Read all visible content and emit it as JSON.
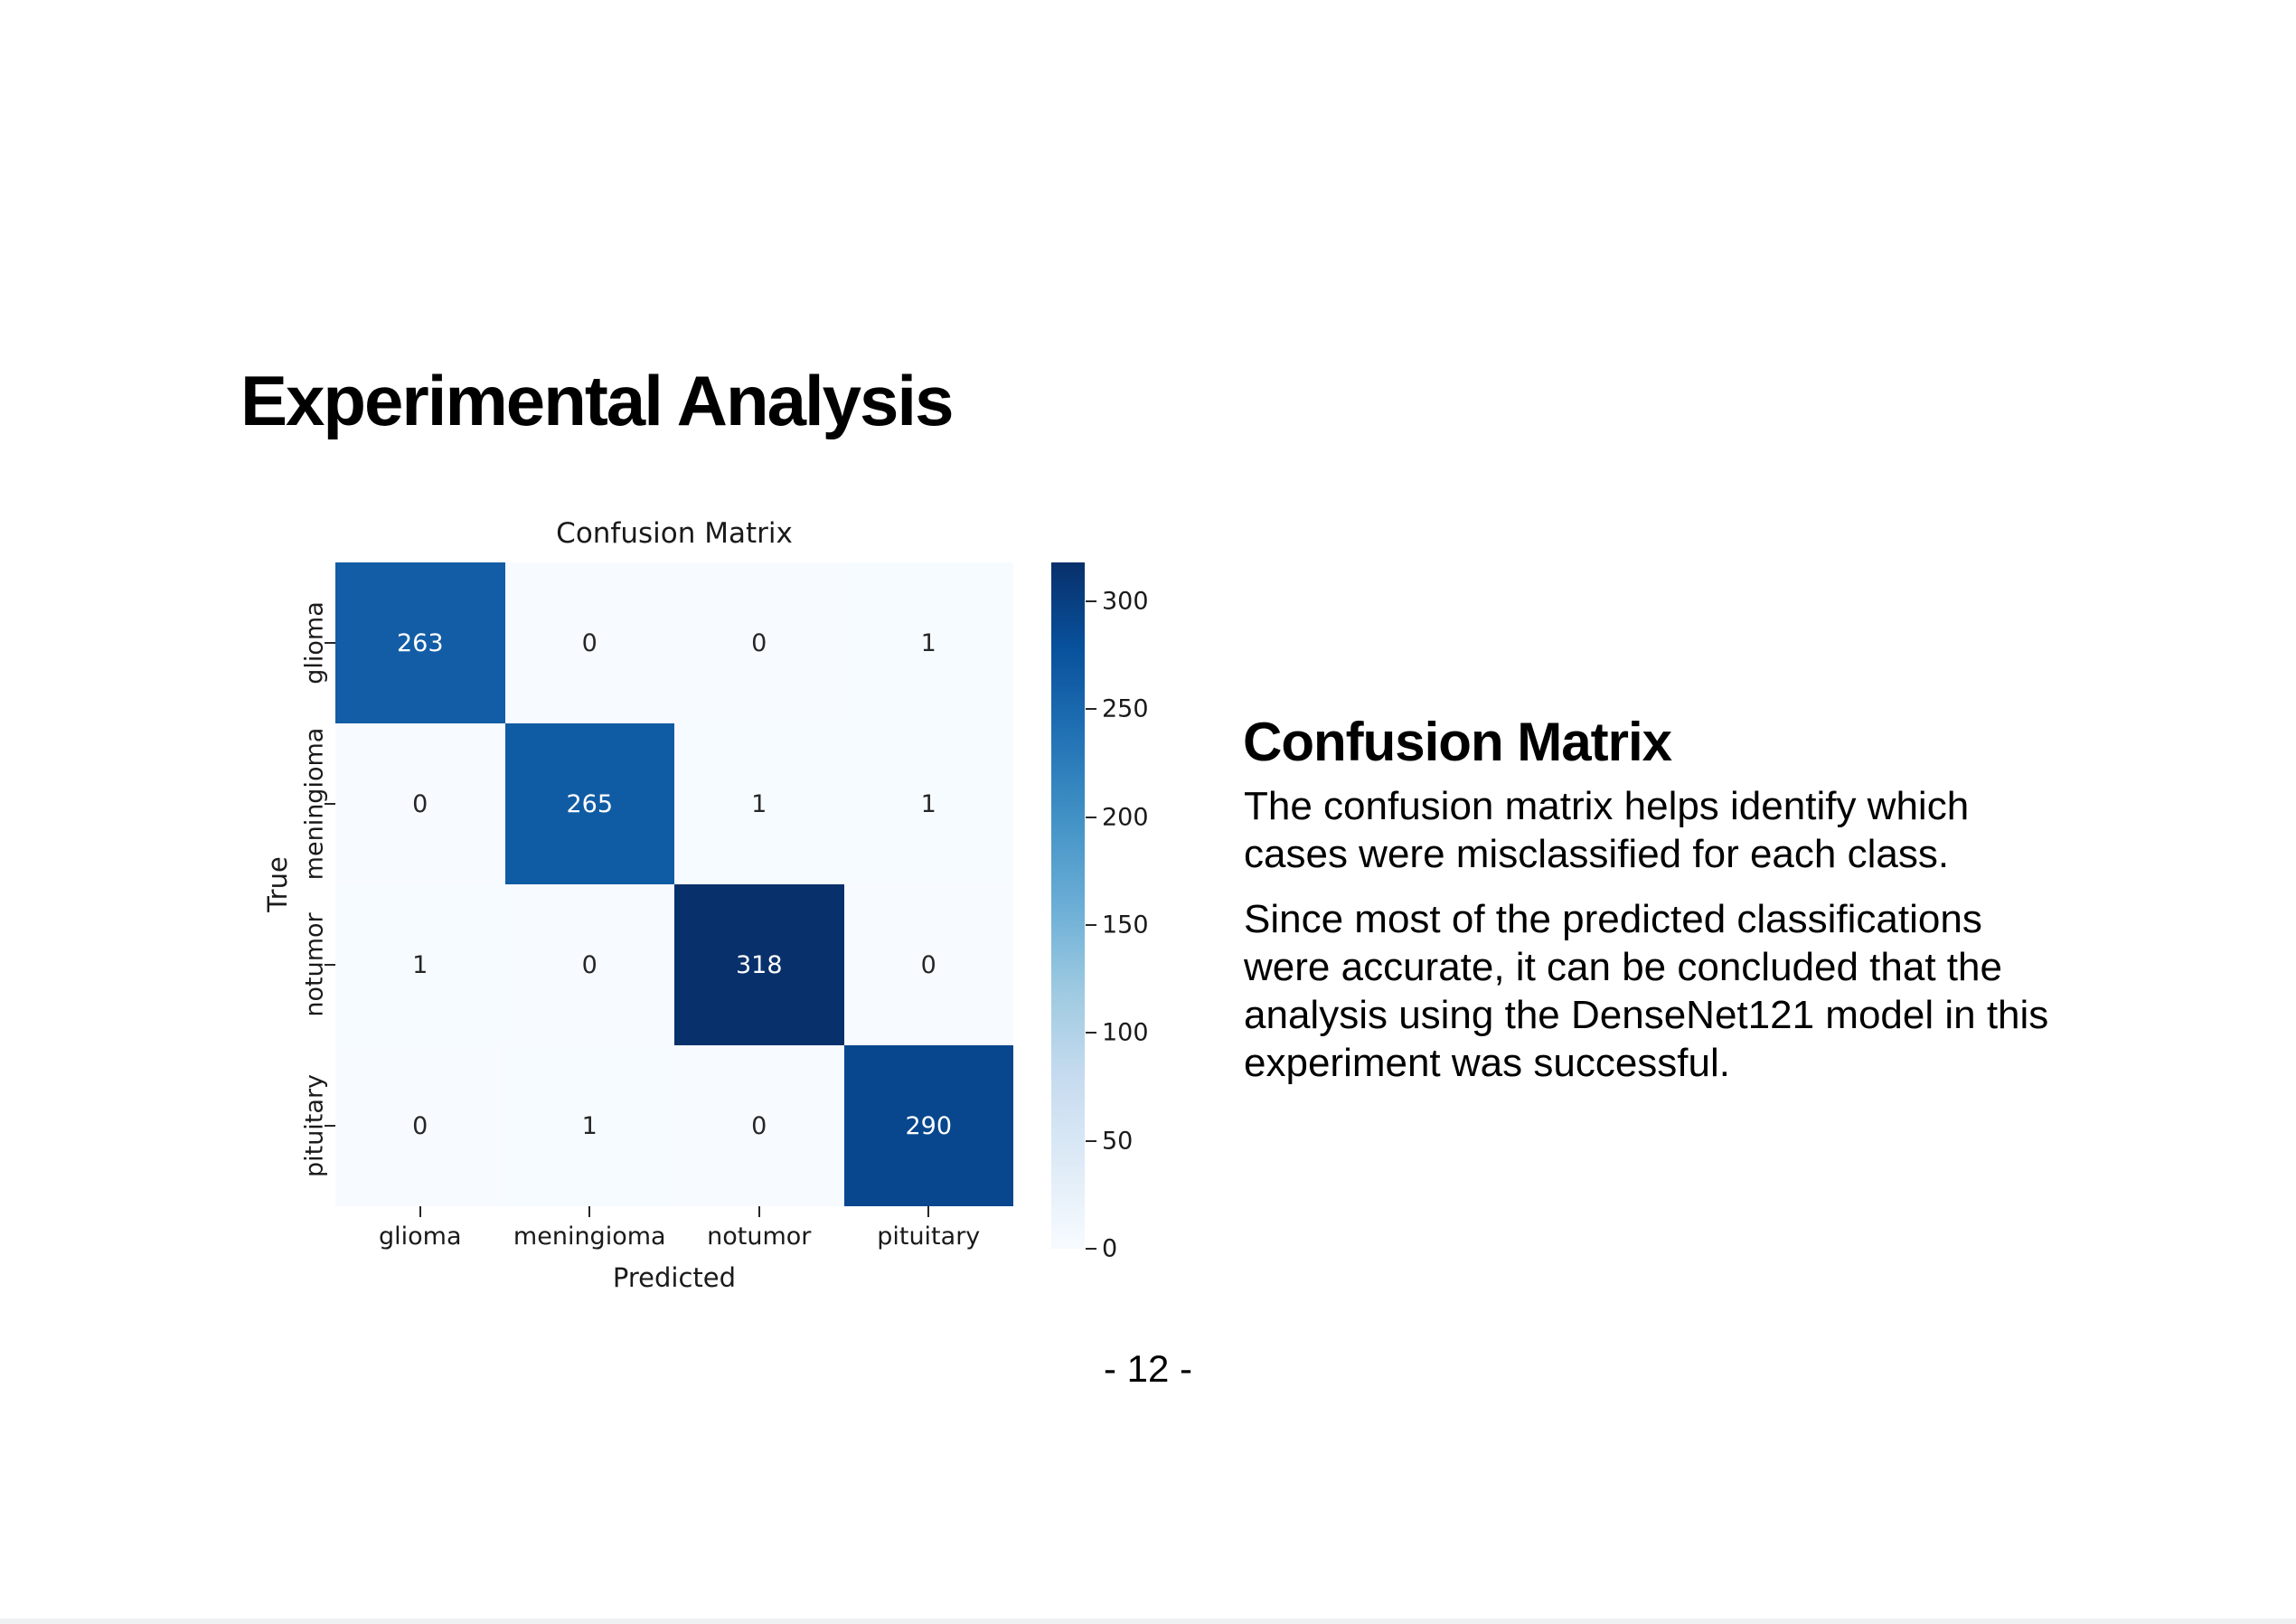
{
  "slide": {
    "title": "Experimental Analysis",
    "page_number": "- 12 -"
  },
  "right_panel": {
    "heading": "Confusion Matrix",
    "para1_lines": [
      "The confusion matrix helps identify which",
      "cases were misclassified for each class."
    ],
    "para2_lines": [
      "Since most of the predicted classifications",
      "were accurate, it can be concluded that the",
      "analysis using the DenseNet121 model in this",
      "experiment was successful."
    ]
  },
  "colors": {
    "background": "#ffffff",
    "slide_text": "#000000",
    "chart_text": "#1a1a1a",
    "annotation_dark": "#262626",
    "annotation_light": "#ffffff",
    "bottom_strip": "#eff0f2"
  },
  "chart_data": {
    "type": "heatmap",
    "title": "Confusion Matrix",
    "xlabel": "Predicted",
    "ylabel": "True",
    "x_categories": [
      "glioma",
      "meningioma",
      "notumor",
      "pituitary"
    ],
    "y_categories": [
      "glioma",
      "meningioma",
      "notumor",
      "pituitary"
    ],
    "values": [
      [
        263,
        0,
        0,
        1
      ],
      [
        0,
        265,
        1,
        1
      ],
      [
        1,
        0,
        318,
        0
      ],
      [
        0,
        1,
        0,
        290
      ]
    ],
    "vmin": 0,
    "vmax": 318,
    "colormap": "Blues",
    "palette": [
      "#f7fbff",
      "#deebf7",
      "#c6dbef",
      "#9ecae1",
      "#6baed6",
      "#4292c6",
      "#2171b5",
      "#08519c",
      "#08306b"
    ],
    "colorbar_ticks": [
      0,
      50,
      100,
      150,
      200,
      250,
      300
    ],
    "colorbar_position": "right",
    "grid": false
  }
}
